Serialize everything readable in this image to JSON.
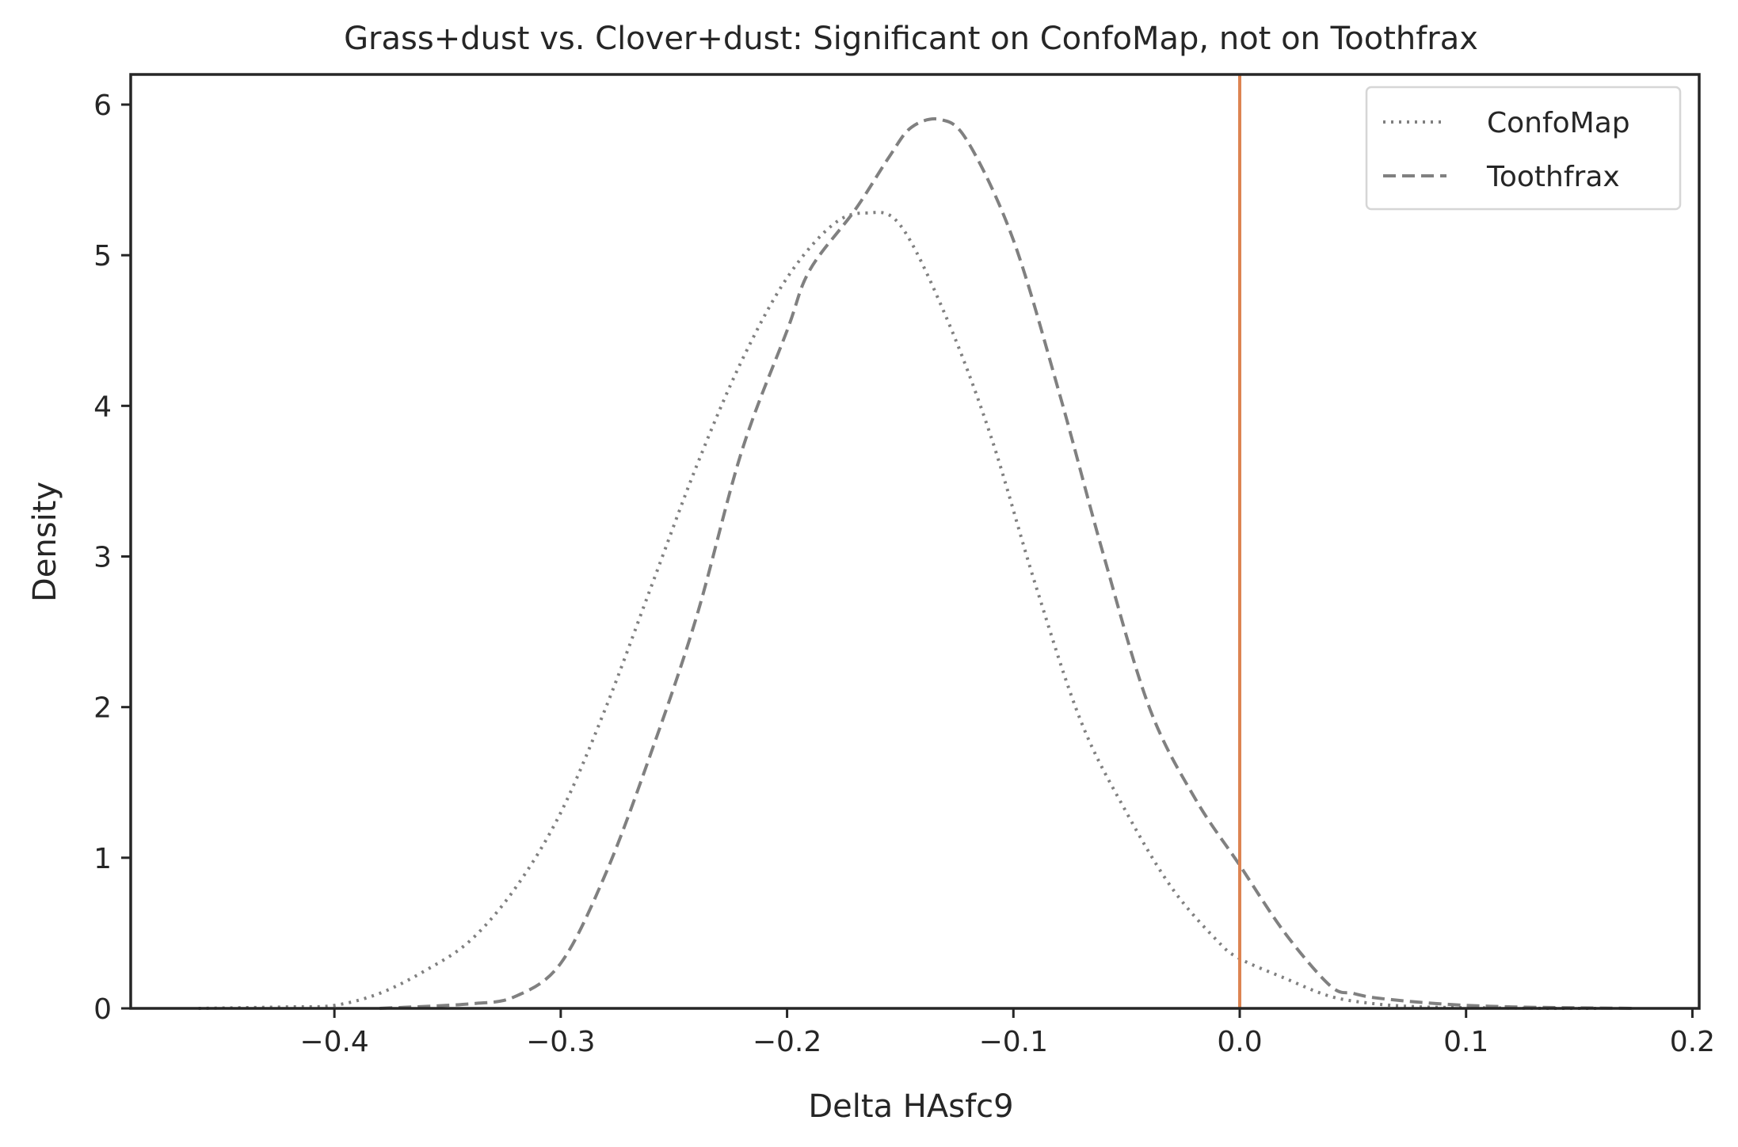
{
  "chart_data": {
    "type": "line",
    "title": "Grass+dust vs. Clover+dust: Significant on ConfoMap, not on Toothfrax",
    "xlabel": "Delta HAsfc9",
    "ylabel": "Density",
    "xlim": [
      -0.49,
      0.203
    ],
    "ylim": [
      0,
      6.2
    ],
    "x_ticks": [
      -0.4,
      -0.3,
      -0.2,
      -0.1,
      0.0,
      0.1,
      0.2
    ],
    "x_tick_labels": [
      "−0.4",
      "−0.3",
      "−0.2",
      "−0.1",
      "0.0",
      "0.1",
      "0.2"
    ],
    "y_ticks": [
      0,
      1,
      2,
      3,
      4,
      5,
      6
    ],
    "y_tick_labels": [
      "0",
      "1",
      "2",
      "3",
      "4",
      "5",
      "6"
    ],
    "grid": false,
    "legend_position": "top-right",
    "reference_line": {
      "x": 0.0,
      "color": "#dd8452"
    },
    "series": [
      {
        "name": "ConfoMap",
        "style": "dotted",
        "color": "#808080",
        "x": [
          -0.46,
          -0.42,
          -0.4,
          -0.38,
          -0.36,
          -0.34,
          -0.32,
          -0.3,
          -0.28,
          -0.26,
          -0.24,
          -0.22,
          -0.2,
          -0.18,
          -0.165,
          -0.15,
          -0.13,
          -0.11,
          -0.09,
          -0.07,
          -0.05,
          -0.03,
          -0.01,
          0.0,
          0.02,
          0.04,
          0.06,
          0.08,
          0.1,
          0.12,
          0.14,
          0.16
        ],
        "y": [
          0.0,
          0.01,
          0.02,
          0.1,
          0.25,
          0.45,
          0.8,
          1.3,
          2.0,
          2.8,
          3.6,
          4.3,
          4.85,
          5.2,
          5.28,
          5.2,
          4.6,
          3.8,
          2.8,
          1.9,
          1.3,
          0.8,
          0.45,
          0.33,
          0.2,
          0.08,
          0.03,
          0.01,
          0.005,
          0.002,
          0.0,
          0.0
        ]
      },
      {
        "name": "Toothfrax",
        "style": "dashed",
        "color": "#808080",
        "x": [
          -0.38,
          -0.34,
          -0.32,
          -0.3,
          -0.28,
          -0.26,
          -0.24,
          -0.22,
          -0.2,
          -0.19,
          -0.17,
          -0.155,
          -0.145,
          -0.132,
          -0.12,
          -0.1,
          -0.08,
          -0.06,
          -0.04,
          -0.02,
          0.0,
          0.02,
          0.04,
          0.05,
          0.06,
          0.08,
          0.1,
          0.12,
          0.14,
          0.175
        ],
        "y": [
          0.0,
          0.03,
          0.08,
          0.3,
          0.9,
          1.7,
          2.6,
          3.7,
          4.5,
          4.9,
          5.3,
          5.65,
          5.85,
          5.9,
          5.75,
          5.1,
          4.1,
          3.0,
          2.0,
          1.4,
          0.95,
          0.5,
          0.15,
          0.1,
          0.07,
          0.04,
          0.02,
          0.01,
          0.005,
          0.0
        ]
      }
    ]
  }
}
